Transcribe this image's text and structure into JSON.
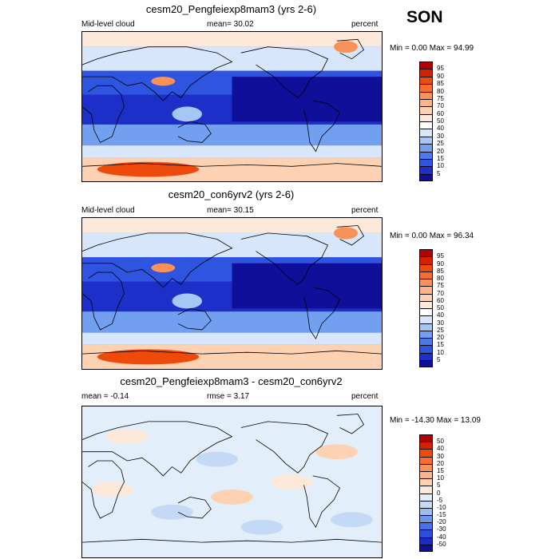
{
  "season": "SON",
  "panels": [
    {
      "title": "cesm20_Pengfeiexp8mam3 (yrs 2-6)",
      "left_label": "Mid-level cloud",
      "center_label": "mean=  30.02",
      "right_label": "percent",
      "minmax": "Min =   0.00 Max =  94.99",
      "colorbar_labels": [
        "95",
        "90",
        "85",
        "80",
        "75",
        "70",
        "60",
        "50",
        "40",
        "30",
        "25",
        "20",
        "15",
        "10",
        "5"
      ],
      "colorbar_colors": [
        "#b30000",
        "#d42000",
        "#ee4a0c",
        "#f76d30",
        "#f99258",
        "#fbb48b",
        "#fdd2b3",
        "#fde9da",
        "#ffffff",
        "#d7e6fa",
        "#a6c7f5",
        "#739ff0",
        "#4c79ea",
        "#2f54e0",
        "#1c2fc9",
        "#0f0f9a"
      ],
      "field": "mid"
    },
    {
      "title": "cesm20_con6yrv2 (yrs 2-6)",
      "left_label": "Mid-level cloud",
      "center_label": "mean=  30.15",
      "right_label": "percent",
      "minmax": "Min =   0.00 Max =  96.34",
      "colorbar_labels": [
        "95",
        "90",
        "85",
        "80",
        "75",
        "70",
        "60",
        "50",
        "40",
        "30",
        "25",
        "20",
        "15",
        "10",
        "5"
      ],
      "colorbar_colors": [
        "#b30000",
        "#d42000",
        "#ee4a0c",
        "#f76d30",
        "#f99258",
        "#fbb48b",
        "#fdd2b3",
        "#fde9da",
        "#ffffff",
        "#d7e6fa",
        "#a6c7f5",
        "#739ff0",
        "#4c79ea",
        "#2f54e0",
        "#1c2fc9",
        "#0f0f9a"
      ],
      "field": "mid"
    },
    {
      "title": "cesm20_Pengfeiexp8mam3 - cesm20_con6yrv2",
      "left_label": "mean =  -0.14",
      "center_label": "rmse =   3.17",
      "right_label": "percent",
      "minmax": "Min = -14.30 Max =  13.09",
      "colorbar_labels": [
        "50",
        "40",
        "30",
        "20",
        "15",
        "10",
        "5",
        "0",
        "-5",
        "-10",
        "-15",
        "-20",
        "-30",
        "-40",
        "-50"
      ],
      "colorbar_colors": [
        "#b30000",
        "#d42000",
        "#ee4a0c",
        "#f76d30",
        "#f99258",
        "#fbb48b",
        "#fdd2b3",
        "#fde9da",
        "#e3eefb",
        "#c4d9f6",
        "#9cbcf1",
        "#7096ec",
        "#4a72e6",
        "#2d4edb",
        "#1a2cc4",
        "#0f0f9a"
      ],
      "field": "diff"
    }
  ]
}
